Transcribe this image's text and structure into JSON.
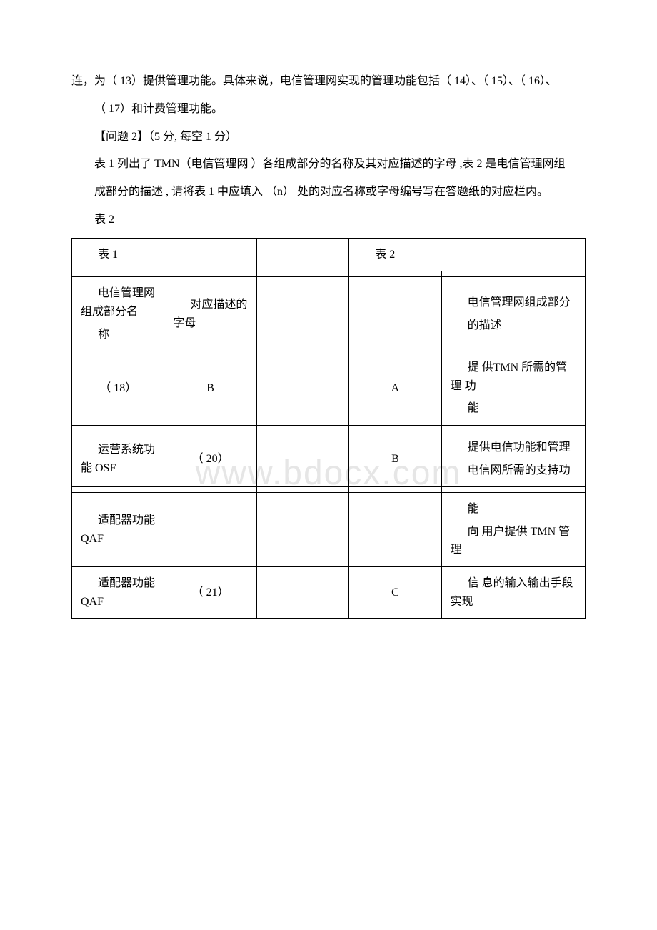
{
  "watermark": "www.bdocx.com",
  "paragraphs": {
    "p1": "连，为（ 13）提供管理功能。具体来说，电信管理网实现的管理功能包括（ 14）、（ 15）、（ 16）、",
    "p2": "（ 17）和计费管理功能。",
    "p3": "【问题 2】（5 分, 每空 1 分）",
    "p4": "表 1 列出了 TMN（电信管理网 ）各组成部分的名称及其对应描述的字母 ,表 2 是电信管理网组",
    "p5": "成部分的描述 , 请将表 1 中应填入 （n） 处的对应名称或字母编号写在答题纸的对应栏内。",
    "p6": "表 2"
  },
  "table": {
    "header": {
      "c1": "表 1",
      "c4": "表 2"
    },
    "row1": {
      "c1a": "电信管理网组成部分名",
      "c1b": "称",
      "c2a": "对应描述的字母",
      "c5a": "电信管理网组成部分",
      "c5b": "的描述"
    },
    "row2": {
      "c1": "（ 18）",
      "c2": "B",
      "c4": "A",
      "c5a": "提 供TMN 所需的管理 功",
      "c5b": "能"
    },
    "row3": {
      "c1": "运营系统功能 OSF",
      "c2": "（ 20）",
      "c4": "B",
      "c5a": "提供电信功能和管理",
      "c5b": "电信网所需的支持功"
    },
    "row4": {
      "c1": "适配器功能 QAF",
      "c5a": "能",
      "c5b": "向 用户提供 TMN 管 理"
    },
    "row5": {
      "c1": "适配器功能 QAF",
      "c2": "（ 21）",
      "c4": "C",
      "c5": "信 息的输入输出手段 实现"
    }
  }
}
